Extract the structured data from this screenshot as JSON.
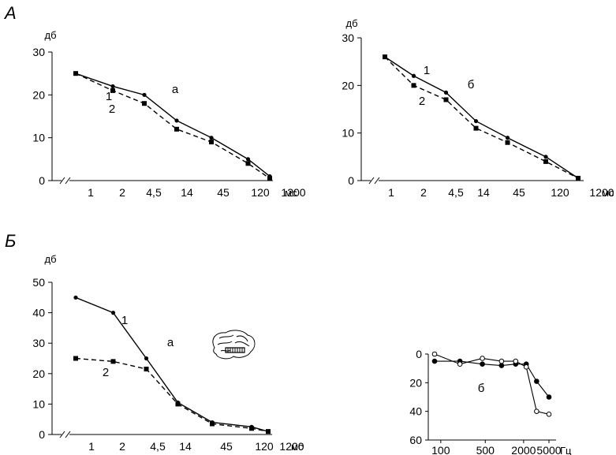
{
  "sections": {
    "A": "А",
    "B": "Б"
  },
  "chart_data": [
    {
      "id": "A-a",
      "type": "line",
      "ylabel": "дб",
      "xunit": "мс",
      "tag": "а",
      "ylim": [
        0,
        30
      ],
      "yticks": [
        0,
        10,
        20,
        30
      ],
      "categories": [
        "1",
        "2",
        "4,5",
        "14",
        "45",
        "120",
        "1200"
      ],
      "series": [
        {
          "name": "1",
          "style": "solid",
          "marker": "circle",
          "color": "#000000",
          "values": [
            25,
            22,
            20,
            14,
            10,
            5,
            1
          ]
        },
        {
          "name": "2",
          "style": "dashed",
          "marker": "square",
          "color": "#000000",
          "values": [
            25,
            21,
            18,
            12,
            9,
            4,
            0.5
          ]
        }
      ]
    },
    {
      "id": "A-b",
      "type": "line",
      "ylabel": "дб",
      "xunit": "мс",
      "tag": "б",
      "ylim": [
        0,
        30
      ],
      "yticks": [
        0,
        10,
        20,
        30
      ],
      "categories": [
        "1",
        "2",
        "4,5",
        "14",
        "45",
        "120",
        "1200"
      ],
      "series": [
        {
          "name": "1",
          "style": "solid",
          "marker": "circle",
          "color": "#000000",
          "values": [
            26,
            22,
            18.5,
            12.5,
            9,
            5,
            0.5
          ]
        },
        {
          "name": "2",
          "style": "dashed",
          "marker": "square",
          "color": "#000000",
          "values": [
            26,
            20,
            17,
            11,
            8,
            4,
            0.5
          ]
        }
      ]
    },
    {
      "id": "B-a",
      "type": "line",
      "ylabel": "дб",
      "xunit": "мс",
      "tag": "а",
      "ylim": [
        0,
        50
      ],
      "yticks": [
        0,
        10,
        20,
        30,
        40,
        50
      ],
      "categories": [
        "1",
        "2",
        "4,5",
        "14",
        "45",
        "120",
        "1200"
      ],
      "series": [
        {
          "name": "1",
          "style": "solid",
          "marker": "circle",
          "color": "#000000",
          "values": [
            45,
            40,
            25,
            10.5,
            4,
            2.5,
            1
          ]
        },
        {
          "name": "2",
          "style": "dashed",
          "marker": "square",
          "color": "#000000",
          "values": [
            25,
            24,
            21.5,
            10,
            3.5,
            2,
            1
          ]
        }
      ]
    },
    {
      "id": "B-b",
      "type": "line",
      "xunit": "Гц",
      "tag": "б",
      "ylim": [
        0,
        60
      ],
      "y_inverted": true,
      "yticks": [
        0,
        20,
        40,
        60
      ],
      "x_scale": "log",
      "xticks": [
        100,
        500,
        2000,
        5000
      ],
      "xtick_labels": [
        "100",
        "500",
        "2000",
        "5000"
      ],
      "series": [
        {
          "name": "",
          "marker": "filled-circle",
          "color": "#000000",
          "x": [
            80,
            200,
            450,
            900,
            1500,
            2200,
            3200,
            5000
          ],
          "y": [
            5,
            5,
            7,
            8,
            7,
            7,
            19,
            30
          ]
        },
        {
          "name": "",
          "marker": "open-circle",
          "color": "#000000",
          "x": [
            80,
            200,
            450,
            900,
            1500,
            2200,
            3200,
            5000
          ],
          "y": [
            0,
            7,
            3,
            5,
            5,
            9,
            40,
            42
          ]
        }
      ]
    }
  ]
}
